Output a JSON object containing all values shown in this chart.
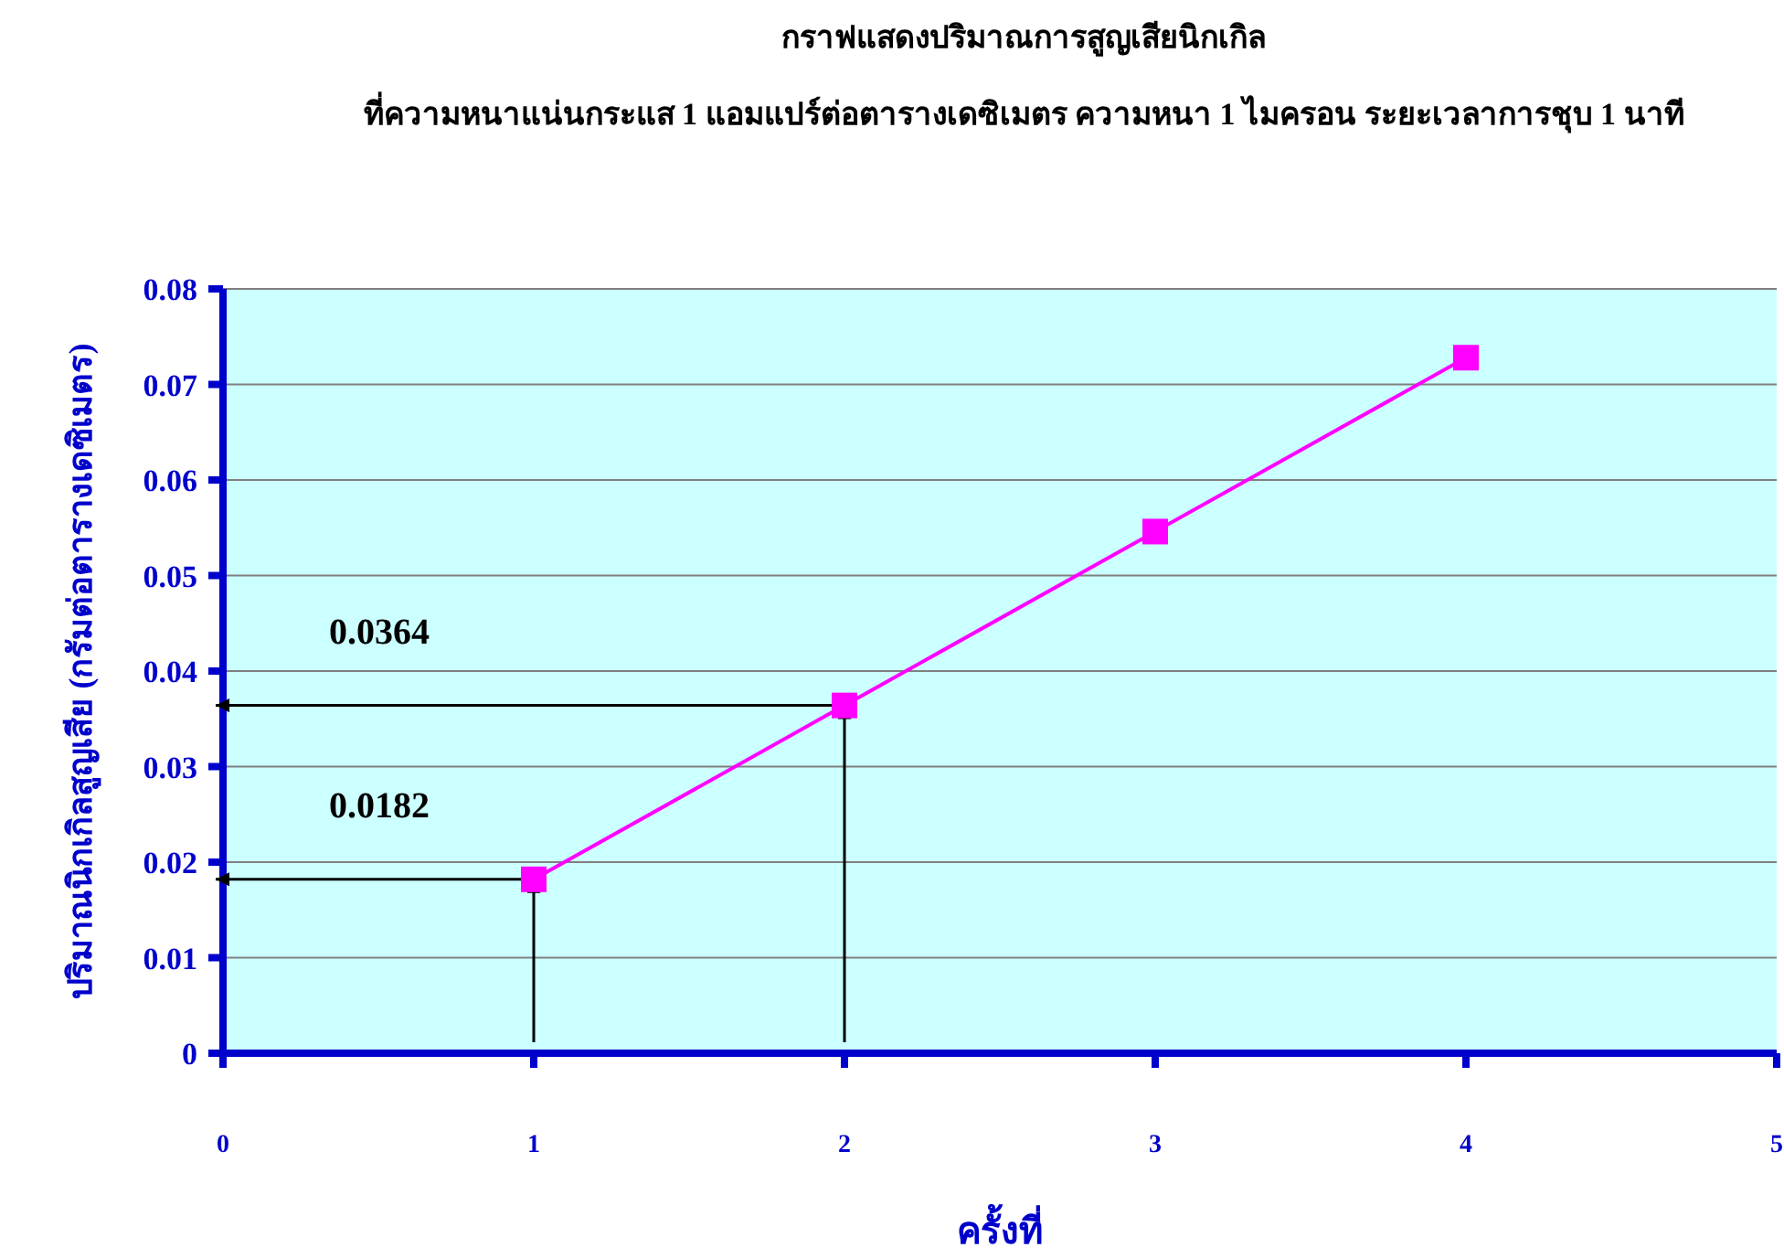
{
  "chart_data": {
    "type": "line",
    "title": "กราฟแสดงปริมาณการสูญเสียนิกเกิล",
    "subtitle": "ที่ความหนาแน่นกระแส 1 แอมแปร์ต่อตารางเดซิเมตร ความหนา 1 ไมครอน ระยะเวลาการชุบ 1 นาที",
    "xlabel": "ครั้งที่",
    "ylabel": "ปริมาณนิกเกิลสูญเสีย (กรัมต่อตารางเดซิเมตร)",
    "x": [
      1,
      2,
      3,
      4
    ],
    "series": [
      {
        "color": "#ff00ff",
        "values": [
          0.0182,
          0.0364,
          0.0546,
          0.0728
        ]
      }
    ],
    "xlim": [
      0,
      5
    ],
    "xticks": [
      0,
      1,
      2,
      3,
      4,
      5
    ],
    "ylim": [
      0,
      0.08
    ],
    "yticks": [
      0,
      0.01,
      0.02,
      0.03,
      0.04,
      0.05,
      0.06,
      0.07,
      0.08
    ],
    "grid": "y",
    "marker": "square",
    "line_style": "solid",
    "annotations": [
      "0.0182",
      "0.0364"
    ]
  }
}
